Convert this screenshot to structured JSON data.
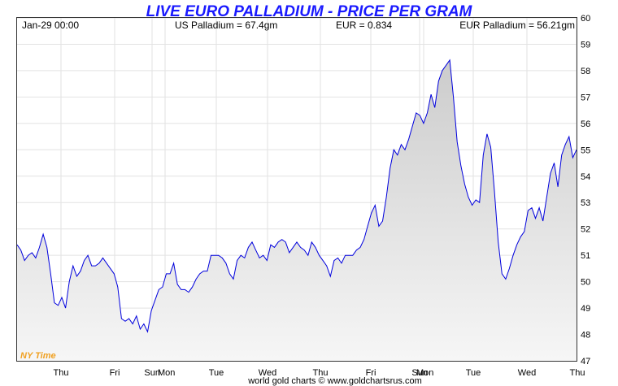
{
  "header": {
    "title": "LIVE EURO PALLADIUM - PRICE PER GRAM",
    "timestamp": "Jan-29  00:00",
    "us_palladium": "US Palladium = 67.4gm",
    "eur_rate": "EUR = 0.834",
    "eur_palladium": "EUR Palladium = 56.21gm"
  },
  "footer": {
    "credit": "world gold charts © www.goldchartsrus.com",
    "timezone": "NY Time"
  },
  "colors": {
    "line": "#0000dd",
    "fill_top": "#cccccc",
    "fill_bottom": "#f6f6f6",
    "grid": "#e2e2e2",
    "title": "#1a1aff",
    "timezone": "#f0a020"
  },
  "chart_data": {
    "type": "area",
    "title": "LIVE EURO PALLADIUM - PRICE PER GRAM",
    "xlabel": "",
    "ylabel": "",
    "ylim": [
      47,
      60
    ],
    "yticks": [
      47,
      48,
      49,
      50,
      51,
      52,
      53,
      54,
      55,
      56,
      57,
      58,
      59,
      60
    ],
    "xticks": [
      "Thu",
      "Fri",
      "Sun",
      "Mon",
      "Tue",
      "Wed",
      "Thu",
      "Fri",
      "Sun",
      "Mon",
      "Tue",
      "Wed",
      "Thu"
    ],
    "grid": true,
    "x": [
      0,
      1,
      2,
      3,
      4,
      5,
      6,
      7,
      8,
      9,
      10,
      11,
      12,
      13,
      14,
      15,
      16,
      17,
      18,
      19,
      20,
      21,
      22,
      23,
      24,
      25,
      26,
      27,
      28,
      29,
      30,
      31,
      32,
      33,
      34,
      35,
      36,
      37,
      38,
      39,
      40,
      41,
      42,
      43,
      44,
      45,
      46,
      47,
      48,
      49,
      50,
      51,
      52,
      53,
      54,
      55,
      56,
      57,
      58,
      59,
      60,
      61,
      62,
      63,
      64,
      65,
      66,
      67,
      68,
      69,
      70,
      71,
      72,
      73,
      74,
      75,
      76,
      77,
      78,
      79,
      80,
      81,
      82,
      83,
      84,
      85,
      86,
      87,
      88,
      89,
      90,
      91,
      92,
      93,
      94,
      95,
      96,
      97,
      98,
      99,
      100,
      101,
      102,
      103,
      104,
      105,
      106,
      107,
      108,
      109,
      110,
      111,
      112,
      113,
      114,
      115,
      116,
      117,
      118,
      119,
      120,
      121,
      122,
      123,
      124,
      125,
      126,
      127,
      128,
      129,
      130,
      131,
      132,
      133,
      134,
      135,
      136,
      137,
      138,
      139,
      140,
      141,
      142,
      143,
      144,
      145,
      146,
      147,
      148,
      149,
      150
    ],
    "series": [
      {
        "values": [
          51.4,
          51.2,
          50.8,
          51.0,
          51.1,
          50.9,
          51.3,
          51.8,
          51.3,
          50.3,
          49.2,
          49.1,
          49.4,
          49.0,
          50.0,
          50.6,
          50.2,
          50.4,
          50.8,
          51.0,
          50.6,
          50.6,
          50.7,
          50.9,
          50.7,
          50.5,
          50.3,
          49.8,
          48.6,
          48.5,
          48.6,
          48.4,
          48.7,
          48.2,
          48.4,
          48.1,
          48.9,
          49.3,
          49.7,
          49.8,
          50.3,
          50.3,
          50.7,
          49.9,
          49.7,
          49.7,
          49.6,
          49.8,
          50.1,
          50.3,
          50.4,
          50.4,
          51.0,
          51.0,
          51.0,
          50.9,
          50.7,
          50.3,
          50.1,
          50.8,
          51.0,
          50.9,
          51.3,
          51.5,
          51.2,
          50.9,
          51.0,
          50.8,
          51.4,
          51.3,
          51.5,
          51.6,
          51.5,
          51.1,
          51.3,
          51.5,
          51.3,
          51.2,
          51.0,
          51.5,
          51.3,
          51.0,
          50.8,
          50.6,
          50.2,
          50.8,
          50.9,
          50.7,
          51.0,
          51.0,
          51.0,
          51.2,
          51.3,
          51.6,
          52.1,
          52.6,
          52.9,
          52.1,
          52.3,
          53.2,
          54.3,
          55.0,
          54.8,
          55.2,
          55.0,
          55.4,
          55.9,
          56.4,
          56.3,
          56.0,
          56.4,
          57.1,
          56.6,
          57.6,
          58.0,
          58.2,
          58.4,
          57.0,
          55.3,
          54.4,
          53.7,
          53.2,
          52.9,
          53.1,
          53.0,
          54.8,
          55.6,
          55.1,
          53.4,
          51.5,
          50.3,
          50.1,
          50.5,
          51.0,
          51.4,
          51.7,
          51.9,
          52.7,
          52.8,
          52.4,
          52.8,
          52.3,
          53.2,
          54.1,
          54.5,
          53.6,
          54.8,
          55.2,
          55.5,
          54.7,
          55.0
        ]
      }
    ]
  }
}
